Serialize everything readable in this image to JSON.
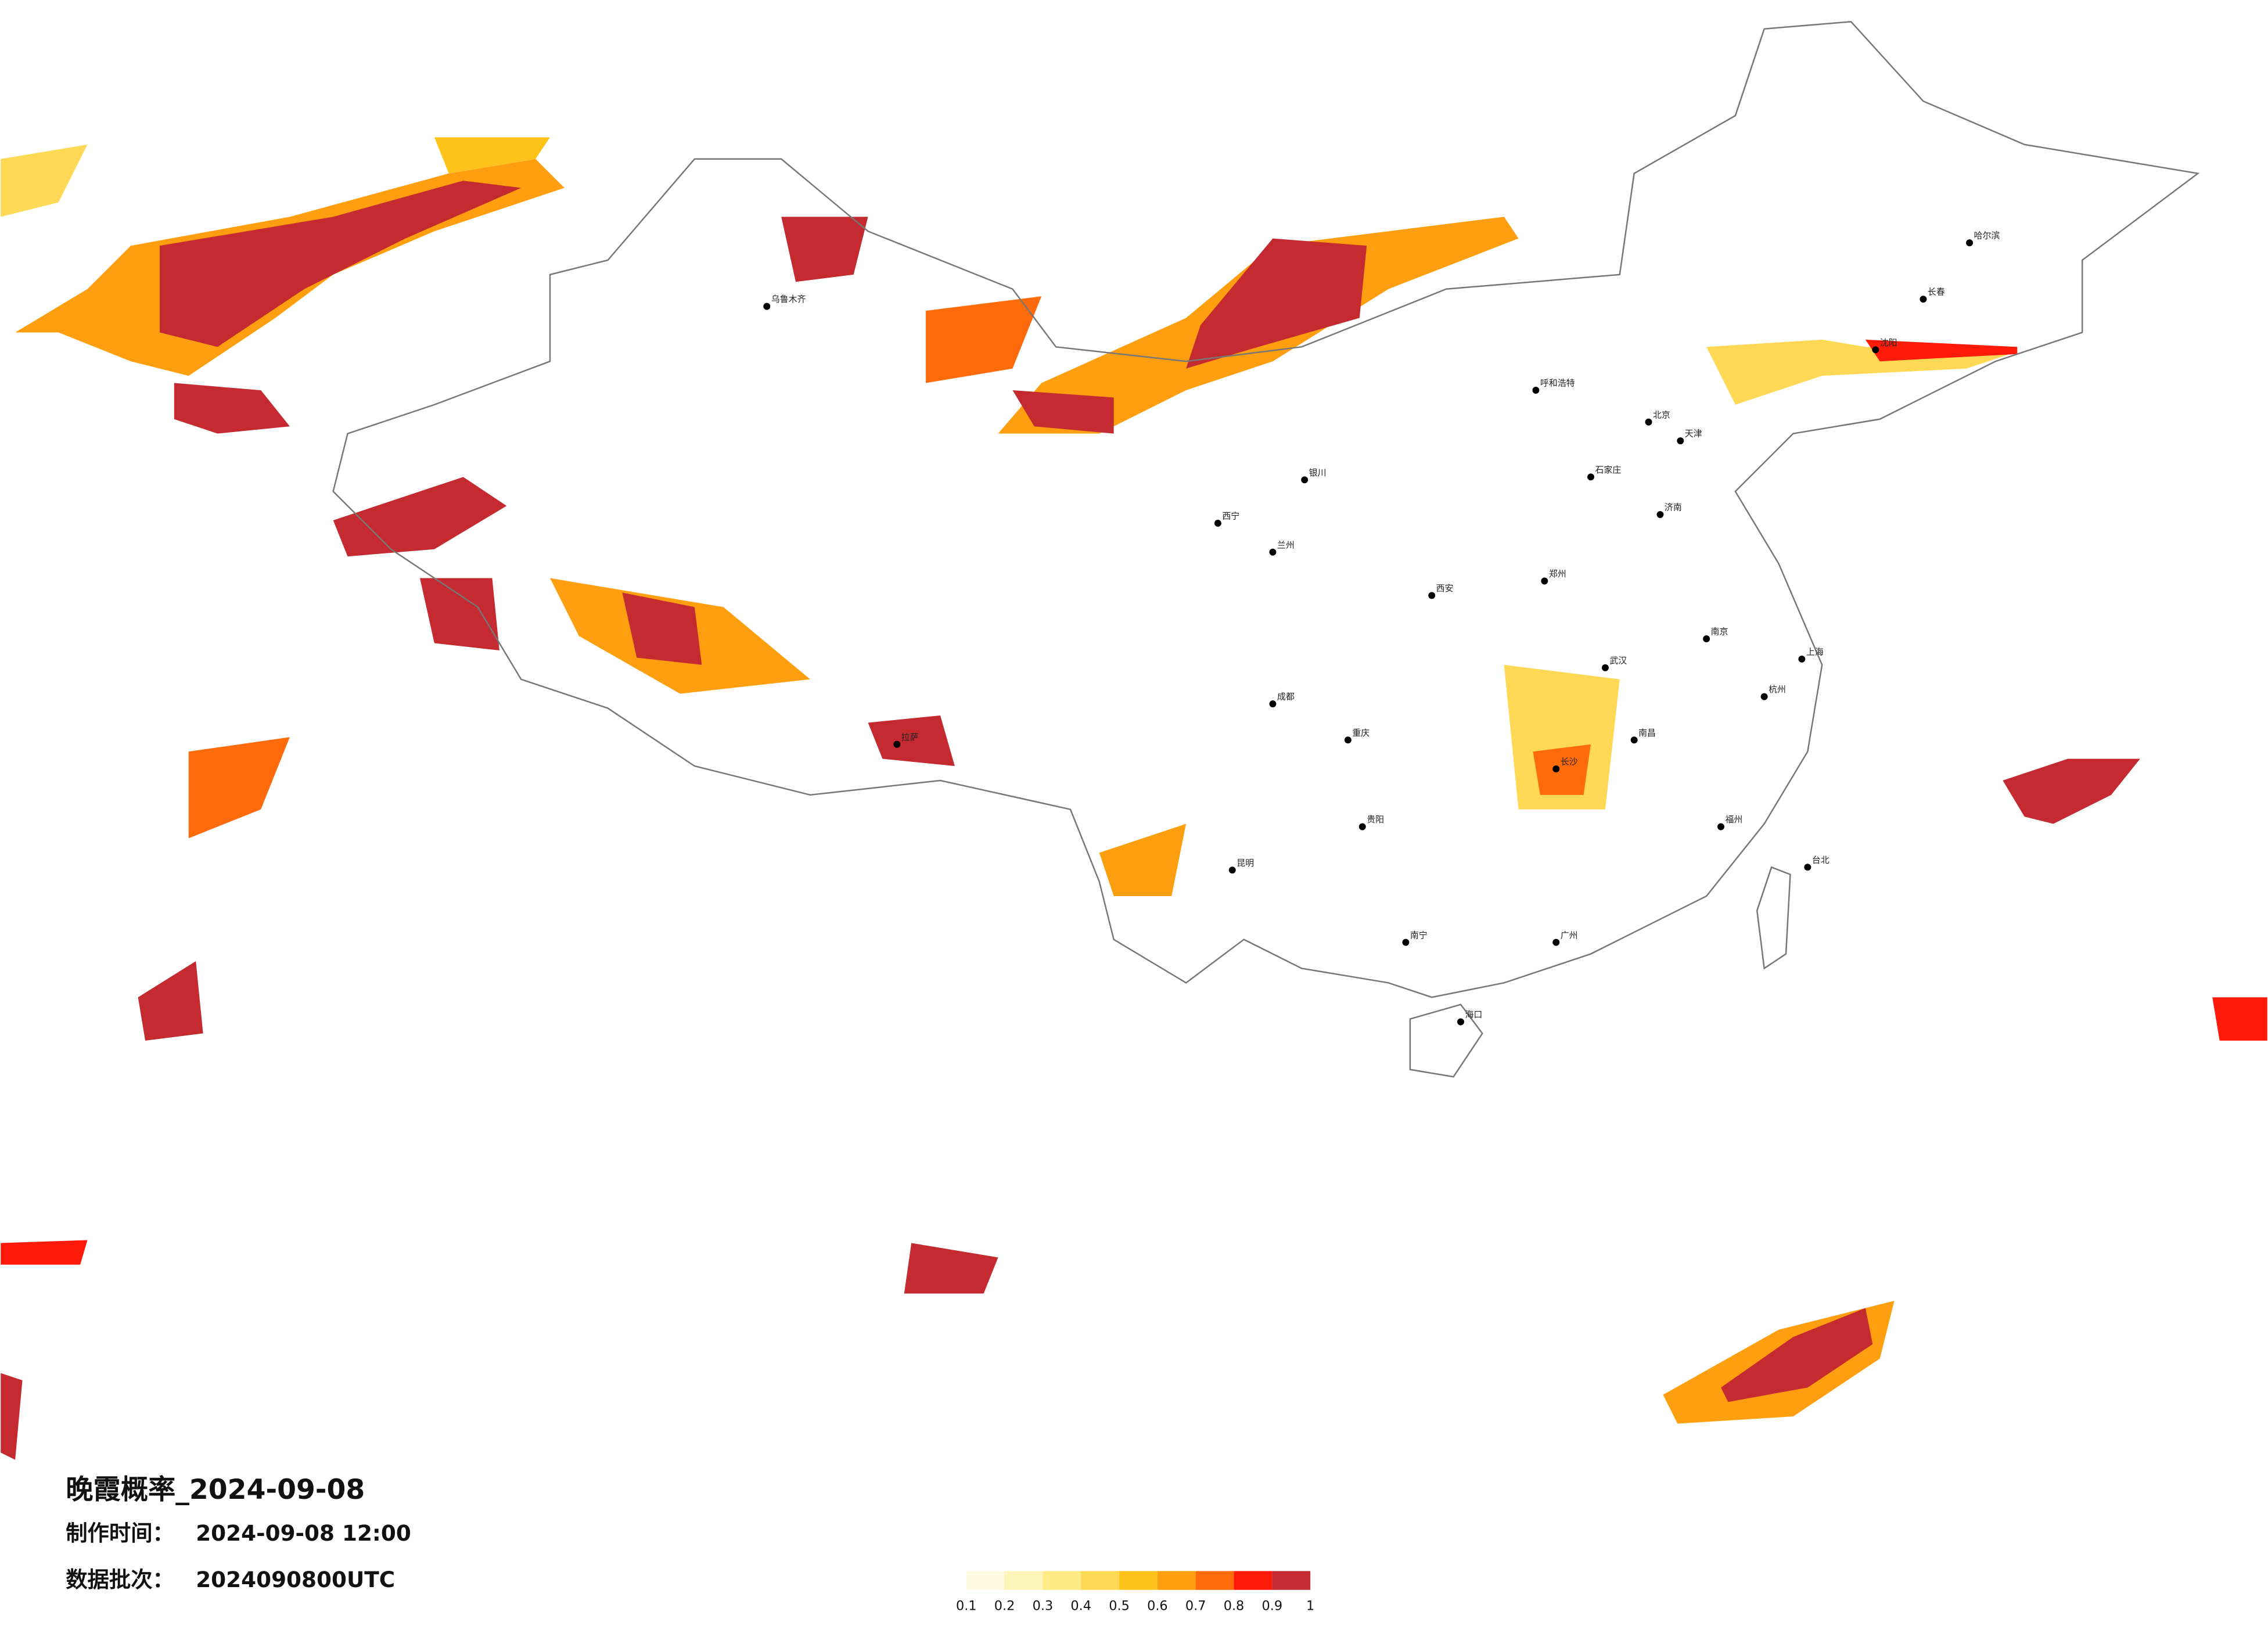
{
  "title": "晚霞概率_2024-09-08",
  "info": [
    {
      "label": "制作时间：",
      "value": "2024-09-08 12:00"
    },
    {
      "label": "数据批次：",
      "value": "2024090800UTC"
    }
  ],
  "legend": {
    "ticks": [
      0.1,
      0.2,
      0.3,
      0.4,
      0.5,
      0.6,
      0.7,
      0.8,
      0.9,
      1
    ],
    "colors": [
      "#fffbe3",
      "#fff4b8",
      "#ffea85",
      "#ffd955",
      "#ffc21a",
      "#ff9f0f",
      "#ff6a0a",
      "#ff1a0a",
      "#c42a30"
    ]
  },
  "cities": [
    "哈尔滨",
    "长春",
    "沈阳",
    "北京",
    "天津",
    "石家庄",
    "济南",
    "郑州",
    "西安",
    "兰州",
    "西宁",
    "银川",
    "呼和浩特",
    "乌鲁木齐",
    "拉萨",
    "成都",
    "重庆",
    "贵阳",
    "昆明",
    "南宁",
    "广州",
    "武汉",
    "长沙",
    "南昌",
    "杭州",
    "上海",
    "南京",
    "福州",
    "台北",
    "海口"
  ]
}
